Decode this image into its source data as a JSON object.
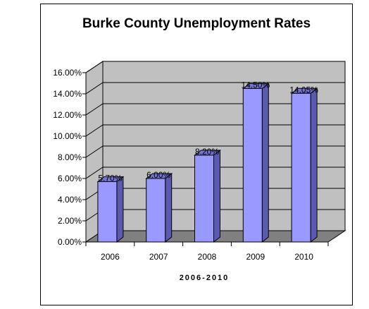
{
  "chart_data": {
    "type": "bar",
    "title": "Burke County Unemployment Rates",
    "xlabel": "2006-2010",
    "ylabel": "",
    "categories": [
      "2006",
      "2007",
      "2008",
      "2009",
      "2010"
    ],
    "values": [
      5.7,
      6.0,
      8.2,
      14.5,
      14.05
    ],
    "data_labels": [
      "5.70%",
      "6.00%",
      "8.20%",
      "14.50%",
      "14.05%"
    ],
    "yticks": [
      "0.00%",
      "2.00%",
      "4.00%",
      "6.00%",
      "8.00%",
      "10.00%",
      "12.00%",
      "14.00%",
      "16.00%"
    ],
    "ylim": [
      0,
      16
    ],
    "grid": true,
    "legend": "none",
    "colors": {
      "bar_front": "#9999ff",
      "bar_side": "#5a5ab0",
      "bar_top": "#7373d8",
      "wall": "#c0c0c0",
      "floor": "#808080"
    }
  }
}
